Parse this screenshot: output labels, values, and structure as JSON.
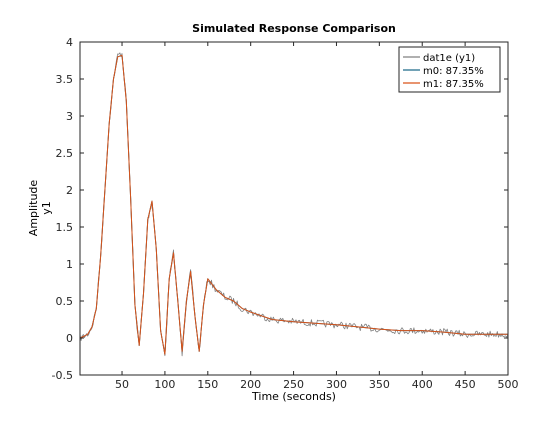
{
  "chart_data": {
    "type": "line",
    "title": "Simulated Response Comparison",
    "xlabel": "Time (seconds)",
    "ylabel": "Amplitude",
    "ylabel2": "y1",
    "xlim": [
      1,
      500
    ],
    "ylim": [
      -0.5,
      4
    ],
    "xticks": [
      50,
      100,
      150,
      200,
      250,
      300,
      350,
      400,
      450,
      500
    ],
    "yticks": [
      -0.5,
      0,
      0.5,
      1,
      1.5,
      2,
      2.5,
      3,
      3.5,
      4
    ],
    "ytick_labels": [
      "-0.5",
      "0",
      "0.5",
      "1",
      "1.5",
      "2",
      "2.5",
      "3",
      "3.5",
      "4"
    ],
    "grid": false,
    "legend_position": "top-right",
    "series": [
      {
        "name": "dat1e (y1)",
        "color": "#808080",
        "noisy": true,
        "x": [
          1,
          5,
          10,
          15,
          20,
          25,
          30,
          35,
          40,
          45,
          50,
          55,
          60,
          65,
          70,
          75,
          80,
          85,
          90,
          95,
          100,
          105,
          110,
          115,
          120,
          125,
          130,
          135,
          140,
          145,
          150,
          160,
          170,
          180,
          190,
          200,
          225,
          250,
          275,
          300,
          325,
          350,
          375,
          400,
          425,
          450,
          475,
          500
        ],
        "y": [
          0,
          0.02,
          0.05,
          0.15,
          0.4,
          1.1,
          2.0,
          2.9,
          3.5,
          3.82,
          3.85,
          3.2,
          1.9,
          0.45,
          -0.12,
          0.6,
          1.6,
          1.85,
          1.2,
          0.1,
          -0.25,
          0.8,
          1.15,
          0.5,
          -0.2,
          0.5,
          0.9,
          0.3,
          -0.2,
          0.45,
          0.8,
          0.65,
          0.55,
          0.5,
          0.4,
          0.35,
          0.25,
          0.22,
          0.2,
          0.18,
          0.15,
          0.12,
          0.1,
          0.1,
          0.08,
          0.05,
          0.05,
          0.05
        ]
      },
      {
        "name": "m0: 87.35%",
        "color": "#1f6b8a",
        "noisy": false,
        "x": [
          1,
          5,
          10,
          15,
          20,
          25,
          30,
          35,
          40,
          45,
          50,
          55,
          60,
          65,
          70,
          75,
          80,
          85,
          90,
          95,
          100,
          105,
          110,
          115,
          120,
          125,
          130,
          135,
          140,
          145,
          150,
          160,
          170,
          180,
          190,
          200,
          225,
          250,
          275,
          300,
          325,
          350,
          375,
          400,
          425,
          450,
          475,
          500
        ],
        "y": [
          0,
          0.02,
          0.05,
          0.15,
          0.4,
          1.1,
          2.0,
          2.9,
          3.5,
          3.8,
          3.82,
          3.2,
          1.9,
          0.45,
          -0.1,
          0.6,
          1.6,
          1.85,
          1.2,
          0.1,
          -0.22,
          0.8,
          1.15,
          0.5,
          -0.18,
          0.5,
          0.9,
          0.3,
          -0.18,
          0.45,
          0.8,
          0.65,
          0.55,
          0.5,
          0.4,
          0.35,
          0.25,
          0.22,
          0.2,
          0.18,
          0.15,
          0.12,
          0.1,
          0.1,
          0.08,
          0.05,
          0.05,
          0.05
        ]
      },
      {
        "name": "m1: 87.35%",
        "color": "#d95319",
        "noisy": false,
        "x": [
          1,
          5,
          10,
          15,
          20,
          25,
          30,
          35,
          40,
          45,
          50,
          55,
          60,
          65,
          70,
          75,
          80,
          85,
          90,
          95,
          100,
          105,
          110,
          115,
          120,
          125,
          130,
          135,
          140,
          145,
          150,
          160,
          170,
          180,
          190,
          200,
          225,
          250,
          275,
          300,
          325,
          350,
          375,
          400,
          425,
          450,
          475,
          500
        ],
        "y": [
          0,
          0.02,
          0.05,
          0.15,
          0.4,
          1.1,
          2.0,
          2.9,
          3.5,
          3.8,
          3.82,
          3.2,
          1.9,
          0.45,
          -0.1,
          0.6,
          1.6,
          1.85,
          1.2,
          0.1,
          -0.22,
          0.8,
          1.15,
          0.5,
          -0.18,
          0.5,
          0.9,
          0.3,
          -0.18,
          0.45,
          0.8,
          0.65,
          0.55,
          0.5,
          0.4,
          0.35,
          0.25,
          0.22,
          0.2,
          0.18,
          0.15,
          0.12,
          0.1,
          0.1,
          0.08,
          0.05,
          0.05,
          0.05
        ]
      }
    ]
  }
}
